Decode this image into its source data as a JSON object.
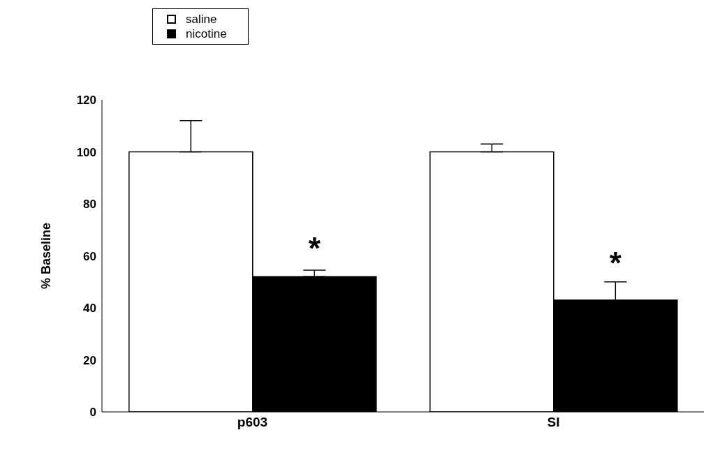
{
  "chart_data": {
    "type": "bar",
    "ylabel": "% Baseline",
    "categories": [
      "p603",
      "SI"
    ],
    "series": [
      {
        "name": "saline",
        "color": "#ffffff",
        "values": [
          100,
          100
        ],
        "errors": [
          [
            100,
            112
          ],
          [
            100,
            103
          ]
        ]
      },
      {
        "name": "nicotine",
        "color": "#000000",
        "values": [
          52,
          43
        ],
        "errors": [
          [
            52,
            54.5
          ],
          [
            43,
            50
          ]
        ]
      }
    ],
    "ylim": [
      0,
      120
    ],
    "yticks": [
      0,
      20,
      40,
      60,
      80,
      100,
      120
    ],
    "grid": false,
    "legend": "top left",
    "annotations": [
      {
        "text": "*",
        "x": "p603",
        "y": 58
      },
      {
        "text": "*",
        "x": "SI",
        "y": 53
      }
    ]
  }
}
